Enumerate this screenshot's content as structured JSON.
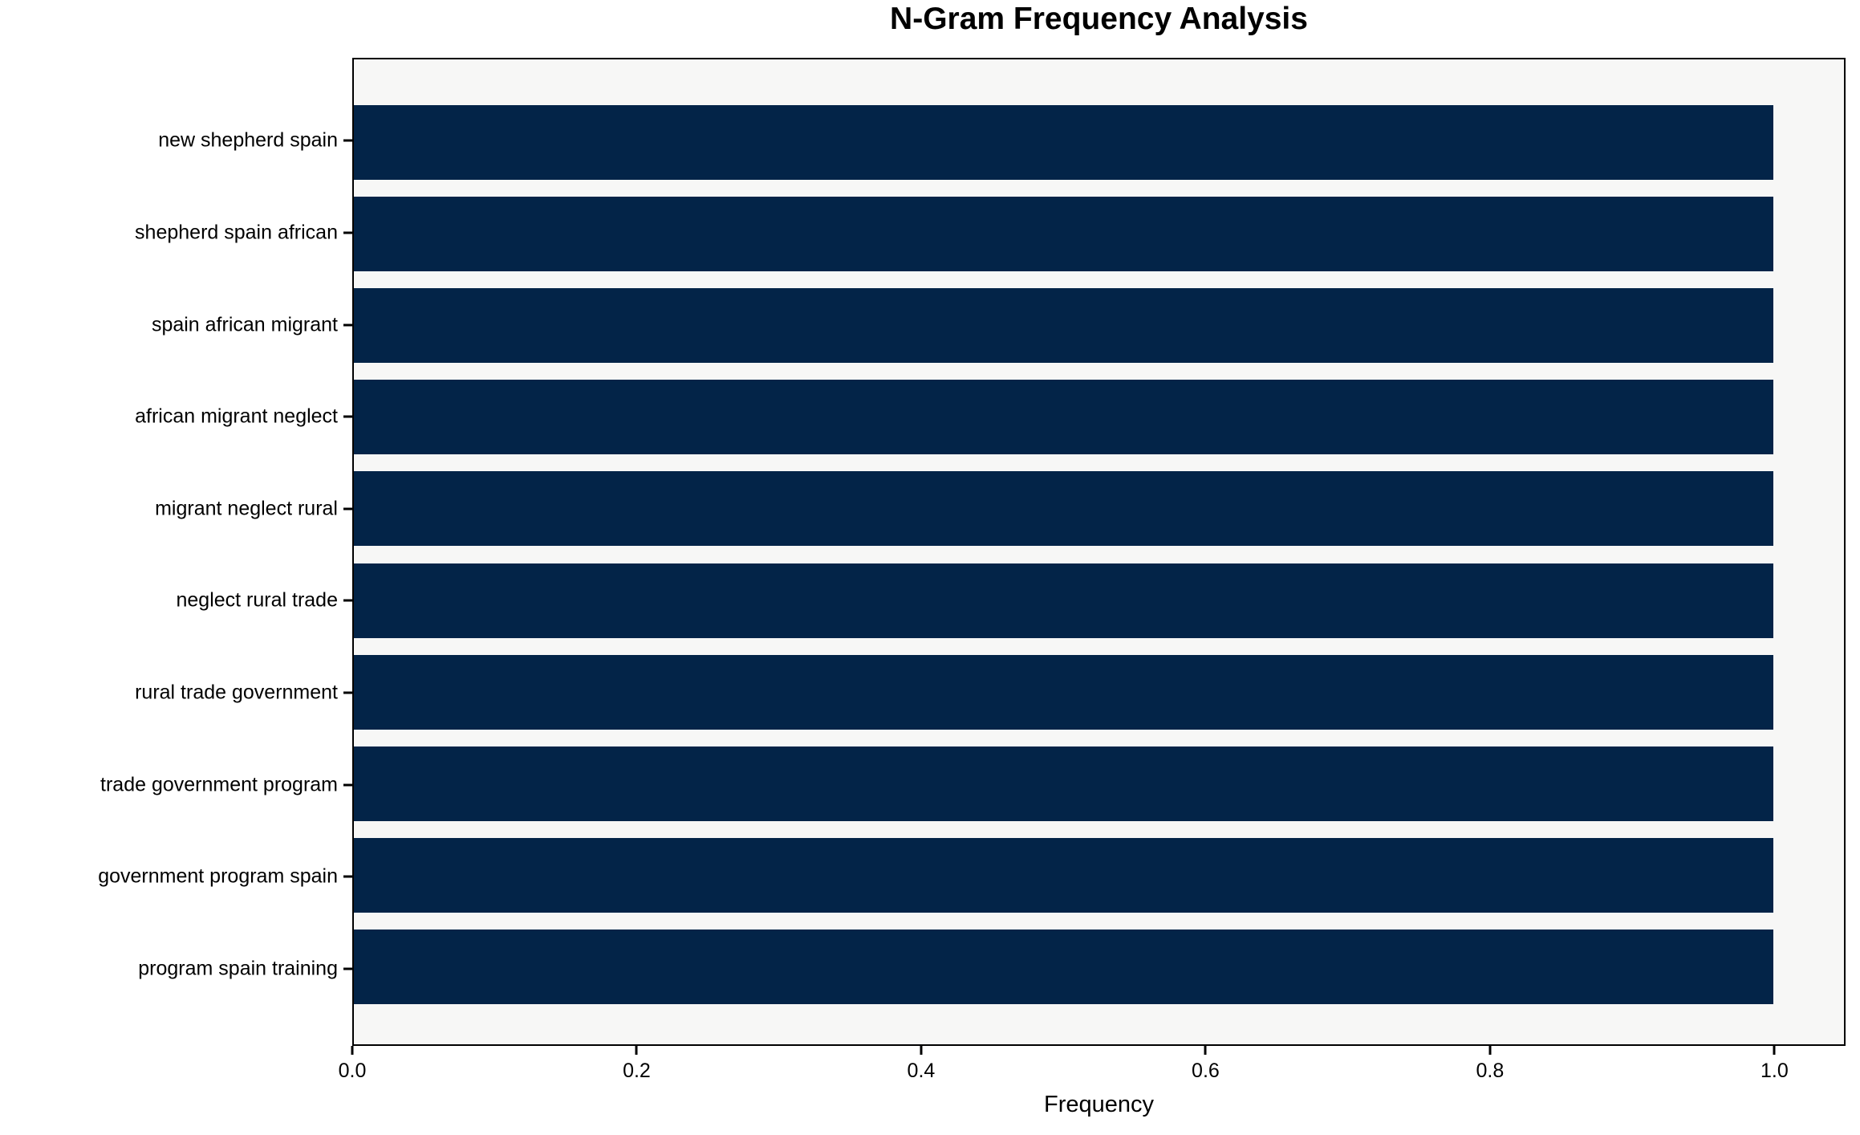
{
  "chart_data": {
    "type": "bar",
    "orientation": "horizontal",
    "title": "N-Gram Frequency Analysis",
    "xlabel": "Frequency",
    "ylabel": "",
    "categories": [
      "new shepherd spain",
      "shepherd spain african",
      "spain african migrant",
      "african migrant neglect",
      "migrant neglect rural",
      "neglect rural trade",
      "rural trade government",
      "trade government program",
      "government program spain",
      "program spain training"
    ],
    "values": [
      1.0,
      1.0,
      1.0,
      1.0,
      1.0,
      1.0,
      1.0,
      1.0,
      1.0,
      1.0
    ],
    "xlim": [
      0,
      1.05
    ],
    "xtick_values": [
      0.0,
      0.2,
      0.4,
      0.6,
      0.8,
      1.0
    ],
    "xtick_labels": [
      "0.0",
      "0.2",
      "0.4",
      "0.6",
      "0.8",
      "1.0"
    ],
    "grid": false,
    "legend": "none",
    "bar_color": "#032448",
    "plot_background": "#f7f7f6",
    "figure_background": "#ffffff",
    "spine_color": "#000000"
  }
}
